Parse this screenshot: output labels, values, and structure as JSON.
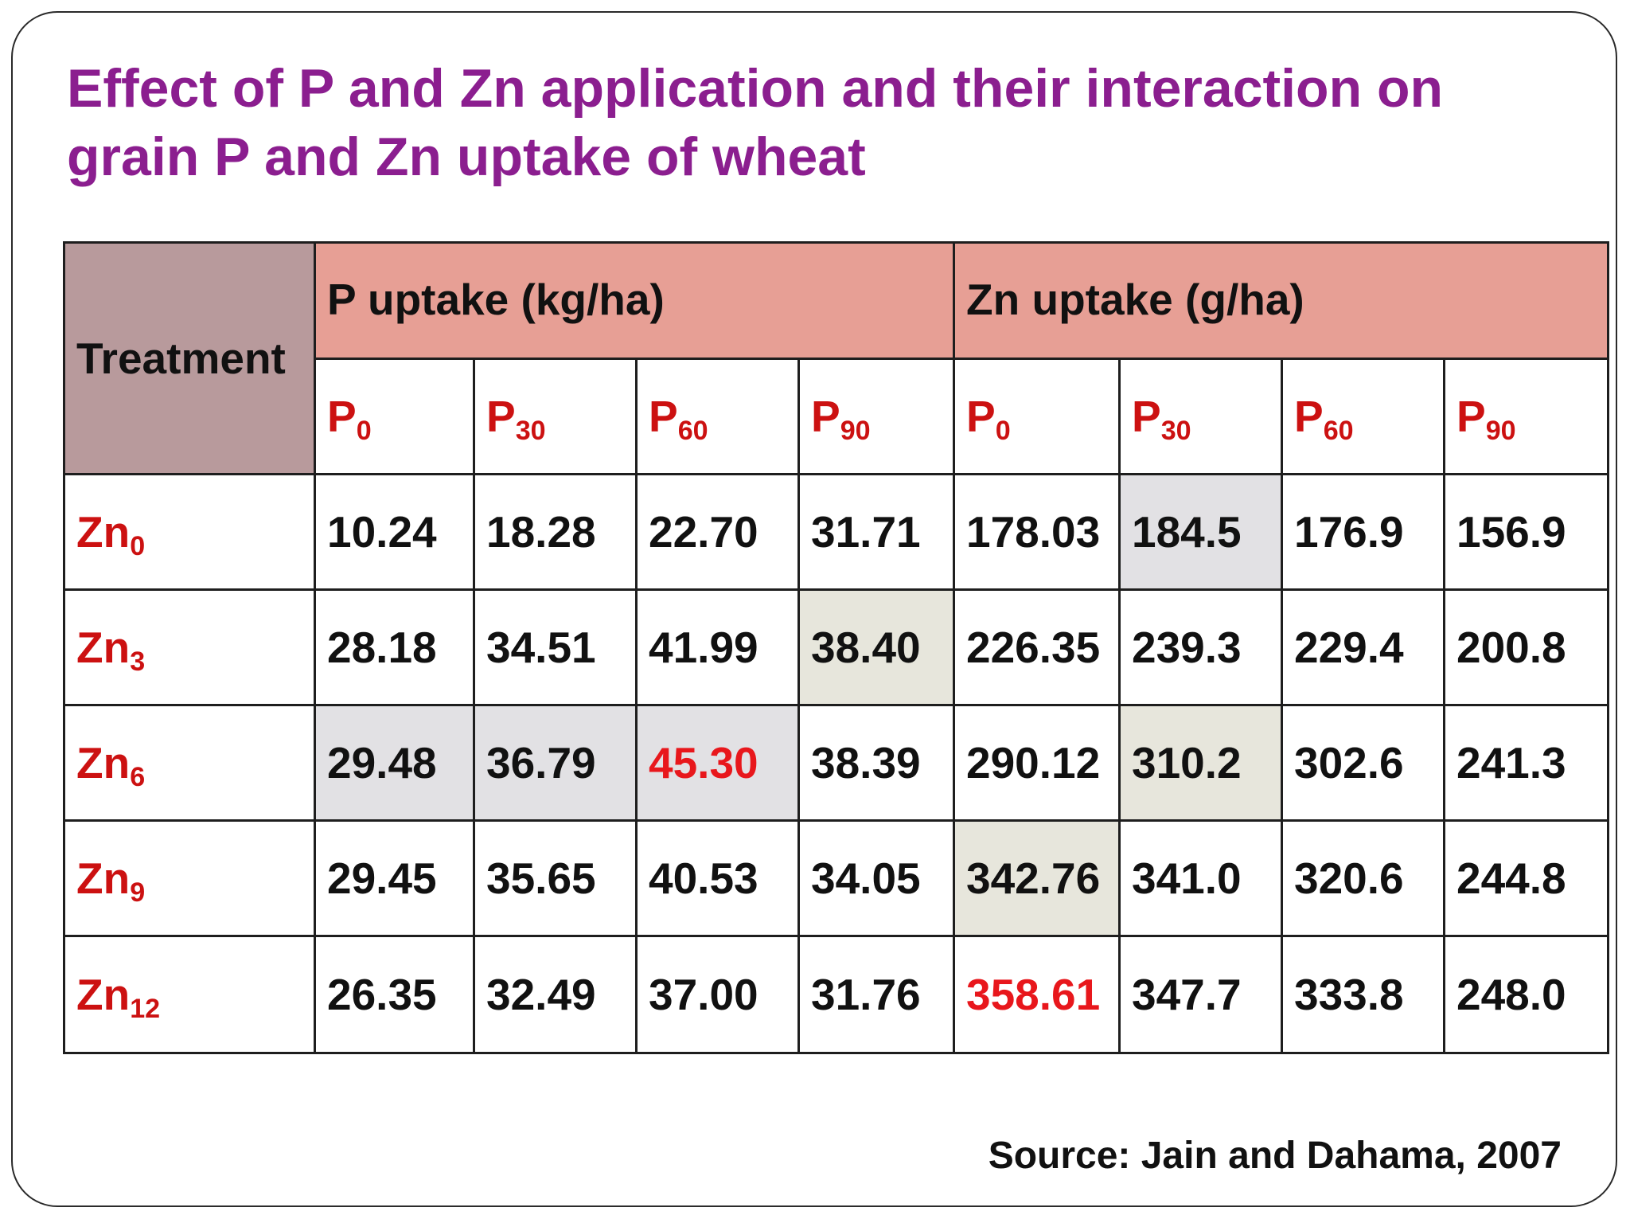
{
  "title": "Effect of P and Zn application and their interaction on grain P and Zn uptake of wheat",
  "table": {
    "treatment_label": "Treatment",
    "groups": [
      "P uptake (kg/ha)",
      "Zn uptake (g/ha)"
    ],
    "sub_columns": [
      {
        "base": "P",
        "sub": "0"
      },
      {
        "base": "P",
        "sub": "30"
      },
      {
        "base": "P",
        "sub": "60"
      },
      {
        "base": "P",
        "sub": "90"
      }
    ],
    "rows": [
      {
        "base": "Zn",
        "sub": "0",
        "p_uptake": [
          "10.24",
          "18.28",
          "22.70",
          "31.71"
        ],
        "zn_uptake": [
          "178.03",
          "184.5",
          "176.9",
          "156.9"
        ]
      },
      {
        "base": "Zn",
        "sub": "3",
        "p_uptake": [
          "28.18",
          "34.51",
          "41.99",
          "38.40"
        ],
        "zn_uptake": [
          "226.35",
          "239.3",
          "229.4",
          "200.8"
        ]
      },
      {
        "base": "Zn",
        "sub": "6",
        "p_uptake": [
          "29.48",
          "36.79",
          "45.30",
          "38.39"
        ],
        "zn_uptake": [
          "290.12",
          "310.2",
          "302.6",
          "241.3"
        ]
      },
      {
        "base": "Zn",
        "sub": "9",
        "p_uptake": [
          "29.45",
          "35.65",
          "40.53",
          "34.05"
        ],
        "zn_uptake": [
          "342.76",
          "341.0",
          "320.6",
          "244.8"
        ]
      },
      {
        "base": "Zn",
        "sub": "12",
        "p_uptake": [
          "26.35",
          "32.49",
          "37.00",
          "31.76"
        ],
        "zn_uptake": [
          "358.61",
          "347.7",
          "333.8",
          "248.0"
        ]
      }
    ]
  },
  "colors": {
    "title": "#8b1e8f",
    "treatment_header_bg": "#b89a9c",
    "group_header_bg": "#e79f95",
    "label_red": "#cc1111",
    "highlight_red_text": "#e8171c",
    "highlight_gray_bg": "#e2e1e4",
    "highlight_beige_bg": "#e7e6dc"
  },
  "source": "Source: Jain and Dahama, 2007"
}
